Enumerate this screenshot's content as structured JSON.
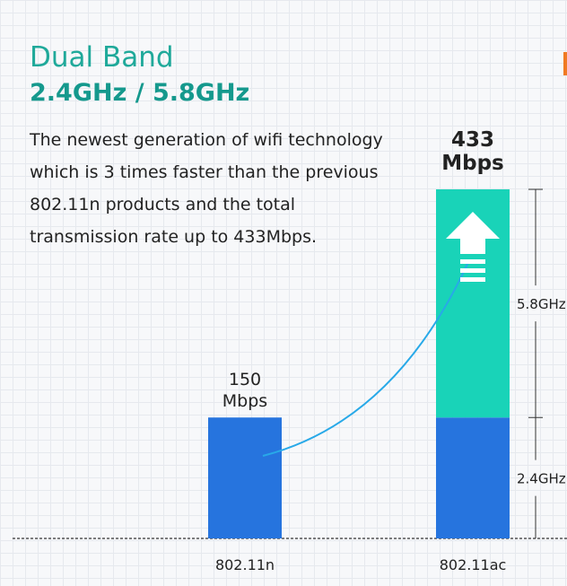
{
  "header": {
    "title": "Dual Band",
    "subtitle": "2.4GHz / 5.8GHz"
  },
  "description": [
    "The newest generation of wifi technology",
    "which is 3 times faster than the previous",
    "802.11n products and the total",
    "transmission rate up to 433Mbps."
  ],
  "colors": {
    "band_24": "#2674de",
    "band_58": "#19d3b8",
    "title": "#1fa99a",
    "curve": "#28a9e8",
    "text": "#222222"
  },
  "chart_data": {
    "type": "bar",
    "stacked": true,
    "categories": [
      "802.11n",
      "802.11ac"
    ],
    "series": [
      {
        "name": "2.4GHz",
        "values": [
          150,
          150
        ]
      },
      {
        "name": "5.8GHz",
        "values": [
          0,
          283
        ]
      }
    ],
    "bar_labels": [
      {
        "value": "150",
        "unit": "Mbps"
      },
      {
        "value": "433",
        "unit": "Mbps"
      }
    ],
    "ylim": [
      0,
      433
    ],
    "icons": [
      "up-arrow-icon",
      "growth-curve"
    ],
    "grid": true
  }
}
